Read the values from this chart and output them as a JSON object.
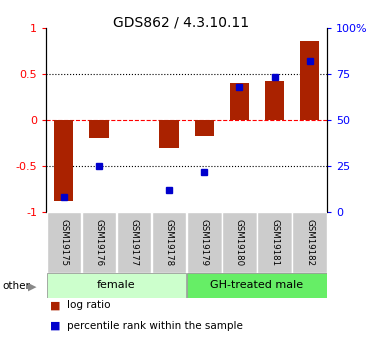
{
  "title": "GDS862 / 4.3.10.11",
  "samples": [
    "GSM19175",
    "GSM19176",
    "GSM19177",
    "GSM19178",
    "GSM19179",
    "GSM19180",
    "GSM19181",
    "GSM19182"
  ],
  "log_ratio": [
    -0.88,
    -0.2,
    0.0,
    -0.3,
    -0.18,
    0.4,
    0.42,
    0.85
  ],
  "percentile_rank": [
    8,
    25,
    null,
    12,
    22,
    68,
    73,
    82
  ],
  "bar_color": "#aa2200",
  "dot_color": "#0000cc",
  "ylim_left": [
    -1,
    1
  ],
  "ylim_right": [
    0,
    100
  ],
  "yticks_left": [
    -1,
    -0.5,
    0,
    0.5,
    1
  ],
  "yticks_right": [
    0,
    25,
    50,
    75,
    100
  ],
  "ytick_labels_right": [
    "0",
    "25",
    "50",
    "75",
    "100%"
  ],
  "female_color": "#ccffcc",
  "male_color": "#66ee66",
  "sample_box_color": "#cccccc",
  "other_label": "other",
  "legend_log_ratio": "log ratio",
  "legend_percentile": "percentile rank within the sample",
  "background_color": "#ffffff"
}
